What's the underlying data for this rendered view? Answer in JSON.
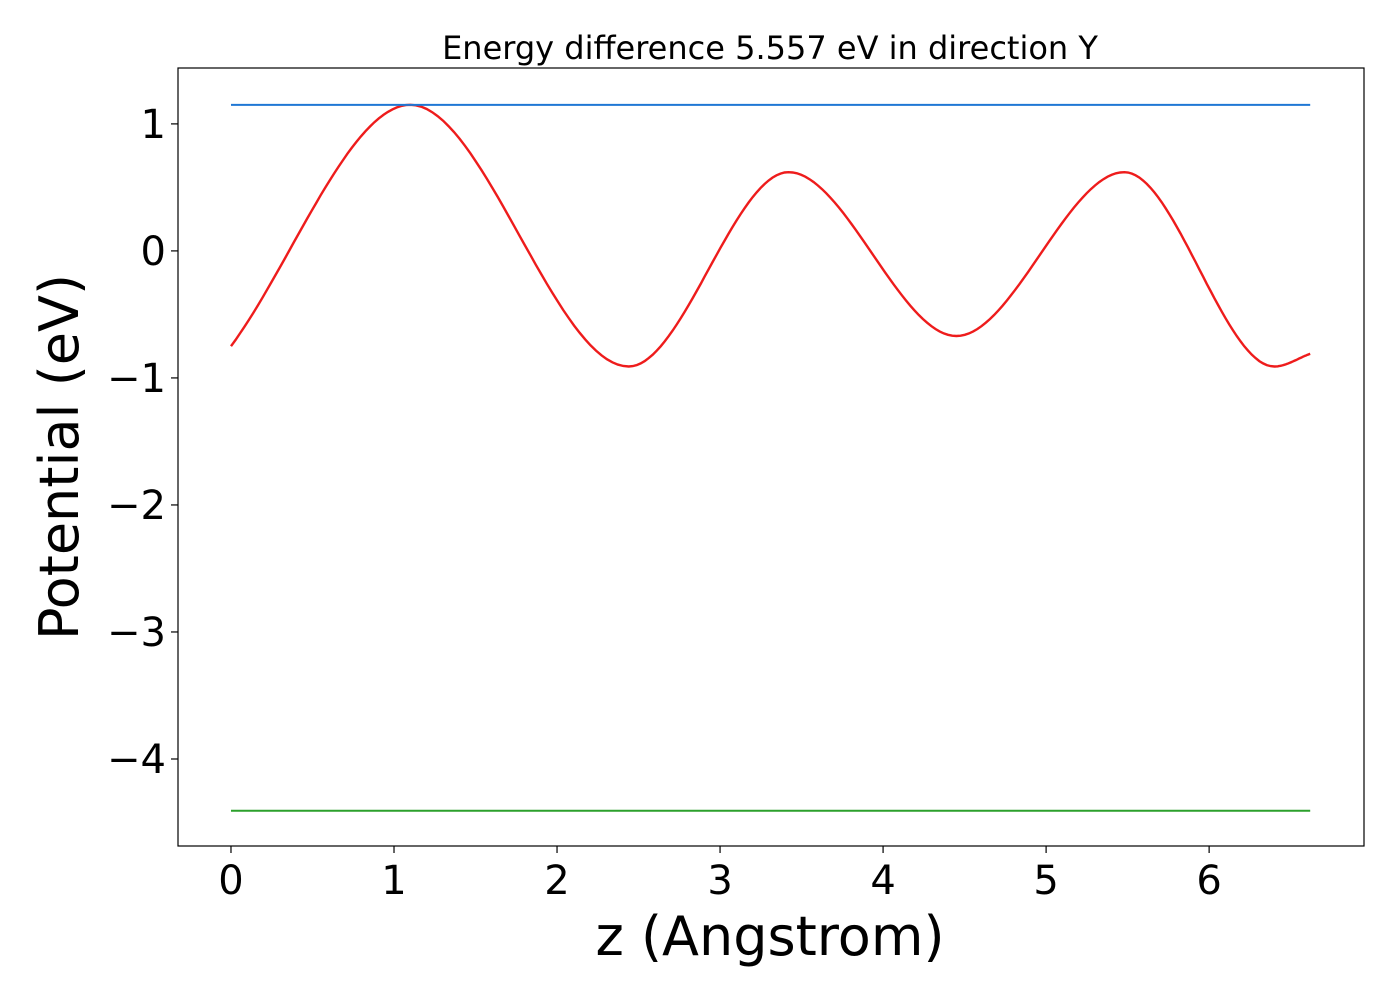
{
  "chart_data": {
    "type": "line",
    "title": "Energy difference 5.557 eV in direction Y",
    "xlabel": "z (Angstrom)",
    "ylabel": "Potential (eV)",
    "xlim": [
      -0.325,
      6.95
    ],
    "ylim": [
      -4.685,
      1.44
    ],
    "xticks": [
      0,
      1,
      2,
      3,
      4,
      5,
      6
    ],
    "xtick_labels": [
      "0",
      "1",
      "2",
      "3",
      "4",
      "5",
      "6"
    ],
    "yticks": [
      1,
      0,
      -1,
      -2,
      -3,
      -4
    ],
    "ytick_labels": [
      "1",
      "0",
      "−1",
      "−2",
      "−3",
      "−4"
    ],
    "grid": false,
    "series": [
      {
        "name": "potential",
        "color": "#ee1c1c",
        "kind": "curve",
        "x": [
          0,
          1.1,
          2.44,
          3.42,
          4.45,
          5.48,
          6.4,
          6.62
        ],
        "y": [
          -0.75,
          1.15,
          -0.91,
          0.62,
          -0.67,
          0.62,
          -0.91,
          -0.81
        ]
      },
      {
        "name": "max level",
        "color": "#1f77d4",
        "kind": "hline",
        "y": 1.15,
        "x": [
          0,
          6.62
        ]
      },
      {
        "name": "min level",
        "color": "#2ca02c",
        "kind": "hline",
        "y": -4.407,
        "x": [
          0,
          6.62
        ]
      }
    ]
  }
}
